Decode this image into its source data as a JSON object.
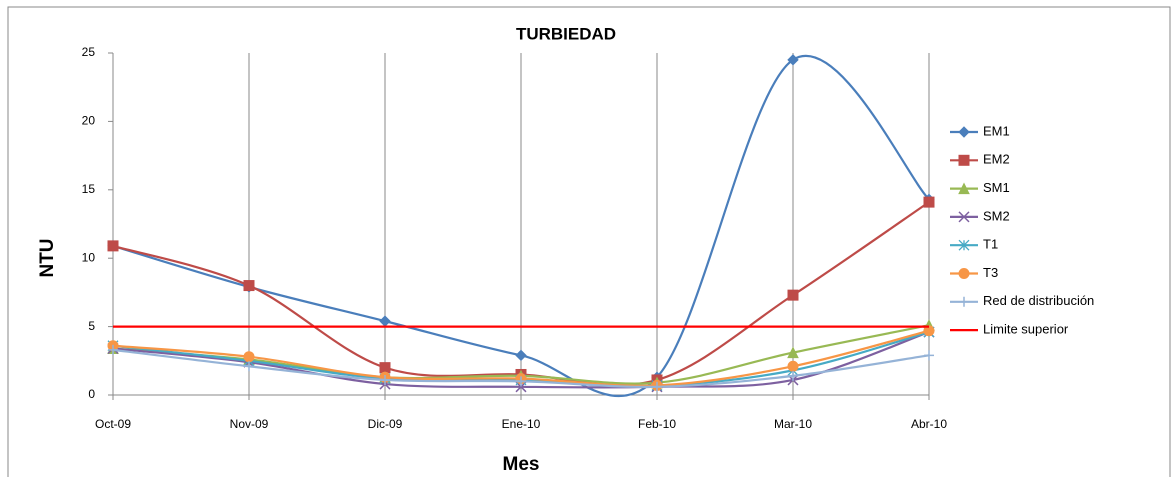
{
  "chart_data": {
    "type": "line",
    "title": "TURBIEDAD",
    "x_label": "Mes",
    "y_label": "NTU",
    "categories": [
      "Oct-09",
      "Nov-09",
      "Dic-09",
      "Ene-10",
      "Feb-10",
      "Mar-10",
      "Abr-10"
    ],
    "ylim": [
      0,
      25
    ],
    "yticks": [
      0,
      5,
      10,
      15,
      20,
      25
    ],
    "grid": "x",
    "smooth": true,
    "legend": "right",
    "series": [
      {
        "name": "EM1",
        "color": "#4a7ebb",
        "marker": "diamond",
        "values": [
          10.9,
          7.9,
          5.4,
          2.9,
          1.3,
          24.5,
          14.3
        ]
      },
      {
        "name": "EM2",
        "color": "#be4b48",
        "marker": "square",
        "values": [
          10.9,
          8.0,
          2.0,
          1.5,
          1.1,
          7.3,
          14.1
        ]
      },
      {
        "name": "SM1",
        "color": "#98b954",
        "marker": "triangle",
        "values": [
          3.4,
          2.6,
          1.3,
          1.4,
          0.9,
          3.1,
          5.1
        ]
      },
      {
        "name": "SM2",
        "color": "#7d60a0",
        "marker": "x",
        "values": [
          3.4,
          2.4,
          0.8,
          0.6,
          0.6,
          1.1,
          4.6
        ]
      },
      {
        "name": "T1",
        "color": "#46aac5",
        "marker": "star",
        "values": [
          3.6,
          2.5,
          1.2,
          1.1,
          0.7,
          1.8,
          4.6
        ]
      },
      {
        "name": "T3",
        "color": "#f79646",
        "marker": "circle",
        "values": [
          3.6,
          2.8,
          1.3,
          1.2,
          0.7,
          2.1,
          4.7
        ]
      },
      {
        "name": "Red de distribución",
        "color": "#95b3d7",
        "marker": "plus",
        "values": [
          3.3,
          2.1,
          1.1,
          1.0,
          0.6,
          1.4,
          2.9
        ]
      },
      {
        "name": "Limite superior",
        "color": "#ff0000",
        "marker": "none",
        "values": [
          5,
          5,
          5,
          5,
          5,
          5,
          5
        ]
      }
    ]
  }
}
